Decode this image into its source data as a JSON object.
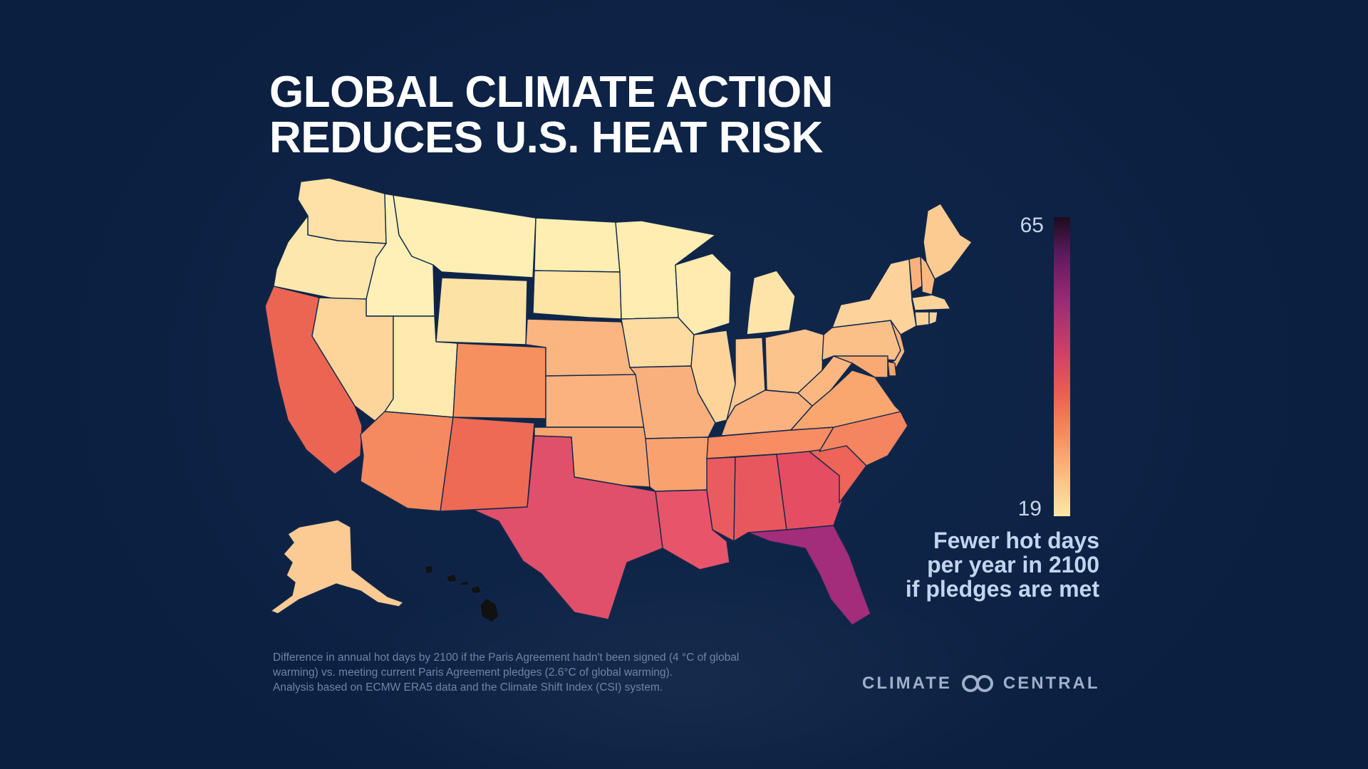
{
  "title": {
    "line1": "GLOBAL CLIMATE ACTION",
    "line2": "REDUCES U.S. HEAT RISK"
  },
  "legend": {
    "max": "65",
    "min": "19",
    "label_line1": "Fewer hot days",
    "label_line2": "per year in 2100",
    "label_line3": "if pledges are met",
    "color_scale": [
      "#fde8a8",
      "#fcc28a",
      "#f78a5c",
      "#ea5b55",
      "#cf3f66",
      "#9a2b75",
      "#5a1a5c",
      "#1a0c1e"
    ]
  },
  "footnote": {
    "line1": "Difference in annual hot days by 2100 if the Paris Agreement hadn't been signed (4 °C of global",
    "line2": "warming) vs. meeting current Paris Agreement pledges (2.6°C of global warming).",
    "line3": "Analysis based on ECMW ERA5 data and the Climate Shift Index (CSI) system."
  },
  "brand": {
    "left": "CLIMATE",
    "right": "CENTRAL",
    "logo_icon": "infinity-rings-icon"
  },
  "map_data": {
    "metric": "Fewer hot days per year in 2100 if pledges are met",
    "scale_min": 19,
    "scale_max": 65,
    "regions": {
      "WA": "#fde1a6",
      "OR": "#fee7ad",
      "CA": "#ec6553",
      "ID": "#fff0b8",
      "NV": "#fdd49a",
      "MT": "#ffefb4",
      "WY": "#fde2a6",
      "UT": "#ffe9ae",
      "AZ": "#f58a60",
      "CO": "#f7905f",
      "NM": "#ee6a55",
      "ND": "#ffeeb2",
      "SD": "#fee4a5",
      "NE": "#fbb581",
      "KS": "#fbb27e",
      "OK": "#f9a571",
      "TX": "#e0506a",
      "MN": "#ffedb1",
      "IA": "#fedba0",
      "MO": "#f9b07d",
      "AR": "#f9a270",
      "LA": "#e8546a",
      "WI": "#ffeab0",
      "IL": "#fed49a",
      "MI": "#fee4a8",
      "IN": "#fcc890",
      "OH": "#fcc48c",
      "KY": "#fbb27e",
      "TN": "#f88c63",
      "MS": "#ea5b5f",
      "AL": "#e9575e",
      "GA": "#e54d62",
      "FL": "#a32c7b",
      "SC": "#ee6458",
      "NC": "#f58460",
      "VA": "#f9a66f",
      "WV": "#fcb781",
      "PA": "#fbbf88",
      "NY": "#fdd39b",
      "ME": "#fccb91",
      "NH": "#fbb882",
      "VT": "#fbb07c",
      "MA": "#fcd39a",
      "CT": "#fdd39a",
      "RI": "#fdd39a",
      "NJ": "#fbb480",
      "DE": "#f8a56f",
      "MD": "#f9aa73",
      "AK": "#fccb94",
      "HI": "#111111"
    }
  }
}
